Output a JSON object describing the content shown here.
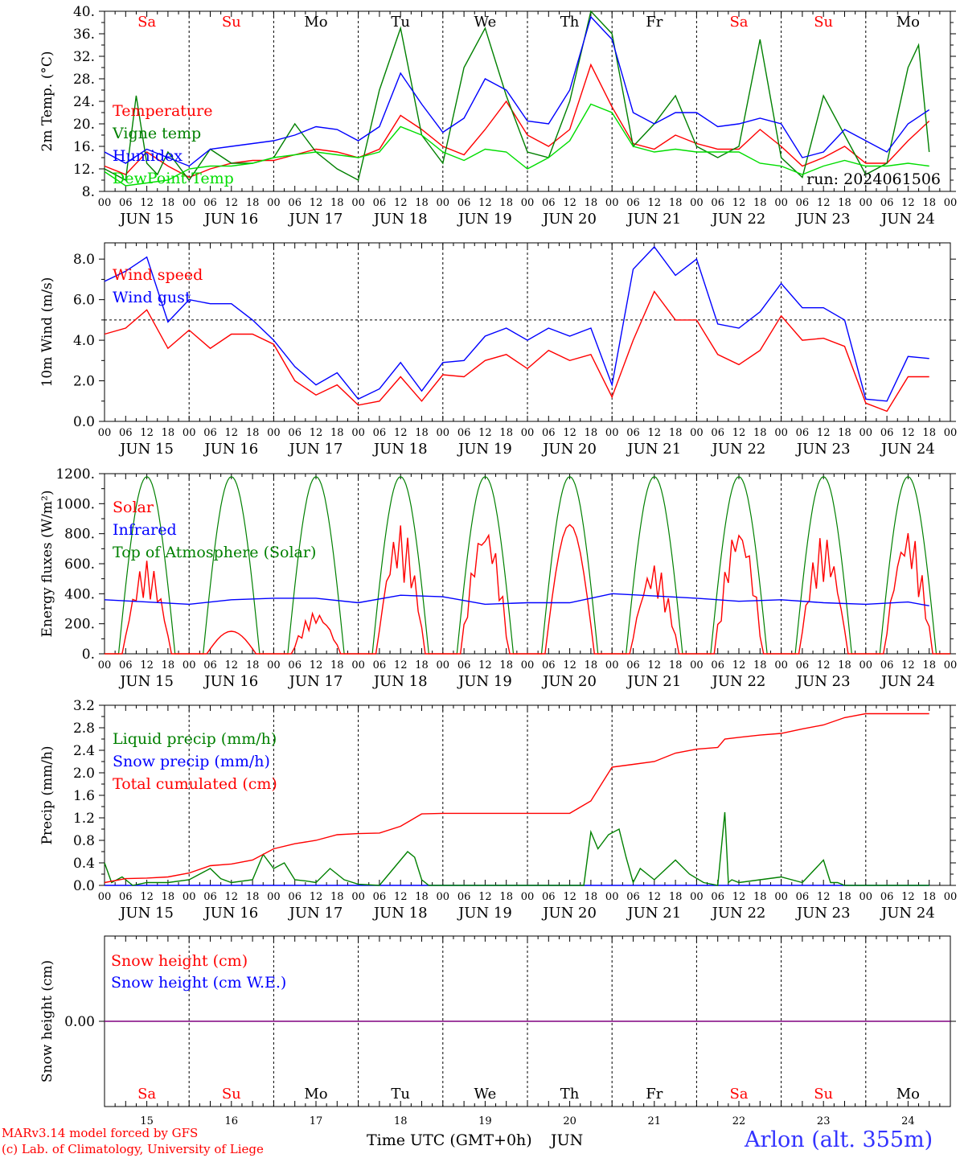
{
  "chart_data": [
    {
      "type": "line",
      "ylabel": "2m Temp. (°C)",
      "ylim": [
        8,
        40
      ],
      "yticks": [
        "8.",
        "12.",
        "16.",
        "20.",
        "24.",
        "28.",
        "32.",
        "36.",
        "40."
      ],
      "grid": "dashed vertical lines at 00 UTC",
      "legend_position": "left",
      "annotation": "run: 2024061506",
      "series": [
        {
          "name": "Temperature",
          "color": "#ff0000",
          "x": [
            0,
            6,
            12,
            18,
            24,
            30,
            36,
            42,
            48,
            54,
            60,
            66,
            72,
            78,
            84,
            90,
            96,
            102,
            108,
            114,
            120,
            126,
            132,
            138,
            144,
            150,
            156,
            162,
            168,
            174,
            180,
            186,
            192,
            198,
            204,
            210,
            216,
            222,
            228,
            234
          ],
          "y": [
            12.5,
            11,
            15,
            12.5,
            10.5,
            12,
            13,
            13.5,
            13.5,
            14.5,
            15.5,
            15,
            14,
            15.5,
            21.5,
            19,
            16,
            14.5,
            19,
            24,
            18,
            16,
            19,
            30.5,
            23,
            16.5,
            15.5,
            18,
            16.5,
            15.5,
            15.5,
            19,
            16,
            12.5,
            14,
            16,
            13,
            13,
            17,
            20.5
          ]
        },
        {
          "name": "Vigne temp",
          "color": "#008000",
          "x": [
            0,
            6,
            9,
            12,
            15,
            18,
            24,
            30,
            36,
            42,
            48,
            54,
            60,
            66,
            72,
            78,
            84,
            90,
            96,
            102,
            108,
            114,
            120,
            126,
            132,
            138,
            144,
            150,
            156,
            162,
            168,
            174,
            180,
            186,
            192,
            198,
            204,
            210,
            216,
            222,
            228,
            231,
            234
          ],
          "y": [
            12,
            10,
            25,
            13,
            11,
            15,
            10,
            15.5,
            13,
            13,
            14,
            20,
            15,
            12,
            10,
            26,
            37,
            18,
            13,
            30,
            37,
            25,
            15,
            14,
            24,
            40,
            36,
            16,
            20,
            25,
            16,
            14,
            16,
            35,
            14,
            10.5,
            25,
            18,
            11,
            13,
            30,
            34,
            15
          ]
        },
        {
          "name": "Humidex",
          "color": "#0000ff",
          "x": [
            0,
            6,
            12,
            18,
            24,
            30,
            36,
            42,
            48,
            54,
            60,
            66,
            72,
            78,
            84,
            90,
            96,
            102,
            108,
            114,
            120,
            126,
            132,
            138,
            144,
            150,
            156,
            162,
            168,
            174,
            180,
            186,
            192,
            198,
            204,
            210,
            216,
            222,
            228,
            234
          ],
          "y": [
            15,
            13,
            15.5,
            14,
            12.5,
            15.5,
            16,
            16.5,
            17,
            18,
            19.5,
            19,
            17,
            19.5,
            29,
            23.5,
            18.5,
            21,
            28,
            26,
            20.5,
            20,
            26,
            39,
            35,
            22,
            20,
            22,
            22,
            19.5,
            20,
            21,
            20,
            14,
            15,
            19,
            17,
            15,
            20,
            22.5
          ]
        },
        {
          "name": "DewPoint Temp",
          "color": "#00dd00",
          "x": [
            0,
            6,
            12,
            18,
            24,
            30,
            36,
            42,
            48,
            54,
            60,
            66,
            72,
            78,
            84,
            90,
            96,
            102,
            108,
            114,
            120,
            126,
            132,
            138,
            144,
            150,
            156,
            162,
            168,
            174,
            180,
            186,
            192,
            198,
            204,
            210,
            216,
            222,
            228,
            234
          ],
          "y": [
            11.5,
            9,
            9.5,
            10,
            12,
            12.5,
            12.5,
            13,
            14,
            14.5,
            15,
            14.5,
            14,
            15,
            19.5,
            18,
            15,
            13.5,
            15.5,
            15,
            12,
            14,
            17,
            23.5,
            22,
            16,
            15,
            15.5,
            15,
            15,
            15,
            13,
            12.5,
            11,
            12.5,
            13.5,
            12.5,
            12.5,
            13,
            12.5
          ]
        }
      ]
    },
    {
      "type": "line",
      "ylabel": "10m Wind (m/s)",
      "ylim": [
        0,
        8.8
      ],
      "yticks": [
        "0.0",
        "2.0",
        "4.0",
        "6.0",
        "8.0"
      ],
      "reference_line": 5.0,
      "series": [
        {
          "name": "Wind speed",
          "color": "#ff0000",
          "x": [
            0,
            6,
            12,
            18,
            24,
            30,
            36,
            42,
            48,
            54,
            60,
            66,
            72,
            78,
            84,
            90,
            96,
            102,
            108,
            114,
            120,
            126,
            132,
            138,
            144,
            150,
            156,
            162,
            168,
            174,
            180,
            186,
            192,
            198,
            204,
            210,
            216,
            222,
            228,
            234
          ],
          "y": [
            4.3,
            4.6,
            5.5,
            3.6,
            4.5,
            3.6,
            4.3,
            4.3,
            3.8,
            2.0,
            1.3,
            1.8,
            0.8,
            1.0,
            2.2,
            1.0,
            2.3,
            2.2,
            3.0,
            3.3,
            2.6,
            3.5,
            3.0,
            3.3,
            1.2,
            4.0,
            6.4,
            5.0,
            5.0,
            3.3,
            2.8,
            3.5,
            5.2,
            4.0,
            4.1,
            3.7,
            0.9,
            0.5,
            2.2,
            2.2
          ]
        },
        {
          "name": "Wind gust",
          "color": "#0000ff",
          "x": [
            0,
            6,
            12,
            18,
            24,
            30,
            36,
            42,
            48,
            54,
            60,
            66,
            72,
            78,
            84,
            90,
            96,
            102,
            108,
            114,
            120,
            126,
            132,
            138,
            144,
            150,
            156,
            162,
            168,
            174,
            180,
            186,
            192,
            198,
            204,
            210,
            216,
            222,
            228,
            234
          ],
          "y": [
            6.9,
            7.4,
            8.1,
            4.9,
            6.0,
            5.8,
            5.8,
            5.0,
            4.0,
            2.7,
            1.8,
            2.4,
            1.1,
            1.6,
            2.9,
            1.5,
            2.9,
            3.0,
            4.2,
            4.6,
            4.0,
            4.6,
            4.2,
            4.6,
            1.8,
            7.5,
            8.6,
            7.2,
            8.0,
            4.8,
            4.6,
            5.4,
            6.8,
            5.6,
            5.6,
            5.0,
            1.1,
            1.0,
            3.2,
            3.1
          ]
        }
      ]
    },
    {
      "type": "line",
      "ylabel": "Energy fluxes (W/m²)",
      "ylim": [
        0,
        1200
      ],
      "yticks": [
        "0.",
        "200.",
        "400.",
        "600.",
        "800.",
        "1000.",
        "1200."
      ],
      "series": [
        {
          "name": "Solar",
          "color": "#ff0000",
          "days_peak": [
            620,
            150,
            280,
            860,
            880,
            860,
            600,
            880,
            790,
            840
          ]
        },
        {
          "name": "Infrared",
          "color": "#0000ff",
          "x": [
            0,
            12,
            24,
            36,
            48,
            60,
            72,
            84,
            96,
            108,
            120,
            132,
            144,
            156,
            168,
            180,
            192,
            204,
            216,
            228,
            234
          ],
          "y": [
            360,
            345,
            330,
            360,
            370,
            370,
            340,
            390,
            380,
            330,
            340,
            340,
            400,
            385,
            370,
            350,
            360,
            340,
            330,
            345,
            320
          ]
        },
        {
          "name": "Top of Atmosphere (Solar)",
          "color": "#008000",
          "peak": 1180
        }
      ]
    },
    {
      "type": "line",
      "ylabel": "Precip (mm/h)",
      "ylim": [
        0,
        3.2
      ],
      "yticks": [
        "0.0",
        "0.4",
        "0.8",
        "1.2",
        "1.6",
        "2.0",
        "2.4",
        "2.8",
        "3.2"
      ],
      "series": [
        {
          "name": "Liquid precip (mm/h)",
          "color": "#008000",
          "x": [
            0,
            2,
            5,
            8,
            12,
            18,
            24,
            30,
            33,
            36,
            42,
            45,
            48,
            51,
            54,
            57,
            60,
            64,
            68,
            72,
            78,
            84,
            86,
            88,
            90,
            92,
            96,
            108,
            120,
            132,
            136,
            138,
            140,
            143,
            146,
            148,
            150,
            152,
            156,
            162,
            166,
            170,
            174,
            176,
            177,
            178,
            180,
            186,
            192,
            198,
            204,
            206,
            208,
            210,
            216,
            222,
            228,
            234
          ],
          "y": [
            0.4,
            0.05,
            0.15,
            0.0,
            0.05,
            0.05,
            0.1,
            0.3,
            0.12,
            0.05,
            0.1,
            0.55,
            0.3,
            0.4,
            0.1,
            0.08,
            0.05,
            0.3,
            0.1,
            0.02,
            0.0,
            0.45,
            0.6,
            0.5,
            0.1,
            0.0,
            0.0,
            0.0,
            0.0,
            0.0,
            0.0,
            0.95,
            0.65,
            0.9,
            1.0,
            0.5,
            0.05,
            0.3,
            0.1,
            0.45,
            0.2,
            0.05,
            0.0,
            1.3,
            0.05,
            0.1,
            0.05,
            0.1,
            0.15,
            0.05,
            0.45,
            0.05,
            0.05,
            0.0,
            0.0,
            0.0,
            0.0,
            0.0
          ]
        },
        {
          "name": "Snow precip (mm/h)",
          "color": "#0000ff",
          "x": [
            0,
            234
          ],
          "y": [
            0,
            0
          ]
        },
        {
          "name": "Total cumulated (cm)",
          "color": "#ff0000",
          "x": [
            0,
            6,
            12,
            18,
            24,
            30,
            36,
            42,
            48,
            54,
            60,
            66,
            72,
            78,
            84,
            90,
            96,
            102,
            108,
            114,
            120,
            126,
            132,
            138,
            144,
            150,
            156,
            162,
            168,
            174,
            176,
            180,
            186,
            192,
            198,
            204,
            210,
            216,
            222,
            228,
            234
          ],
          "y": [
            0.05,
            0.12,
            0.13,
            0.15,
            0.22,
            0.35,
            0.38,
            0.45,
            0.65,
            0.74,
            0.8,
            0.9,
            0.92,
            0.93,
            1.05,
            1.27,
            1.28,
            1.28,
            1.28,
            1.28,
            1.28,
            1.28,
            1.28,
            1.5,
            2.1,
            2.15,
            2.2,
            2.35,
            2.42,
            2.45,
            2.6,
            2.63,
            2.67,
            2.7,
            2.78,
            2.85,
            2.98,
            3.05,
            3.05,
            3.05,
            3.05
          ]
        }
      ]
    },
    {
      "type": "line",
      "ylabel": "Snow height (cm)",
      "yticks": [
        "0.00"
      ],
      "series": [
        {
          "name": "Snow height (cm)",
          "color": "#ff0000",
          "x": [
            0,
            234
          ],
          "y": [
            0,
            0
          ]
        },
        {
          "name": "Snow height (cm W.E.)",
          "color": "#0000ff",
          "x": [
            0,
            234
          ],
          "y": [
            0,
            0
          ]
        }
      ]
    }
  ],
  "x_axis": {
    "hour_ticks": [
      "00",
      "06",
      "12",
      "18"
    ],
    "end_tick": "00",
    "dates": [
      "JUN 15",
      "JUN 16",
      "JUN 17",
      "JUN 18",
      "JUN 19",
      "JUN 20",
      "JUN 21",
      "JUN 22",
      "JUN 23",
      "JUN 24"
    ],
    "day_numbers": [
      "15",
      "16",
      "17",
      "18",
      "19",
      "20",
      "21",
      "22",
      "23",
      "24"
    ],
    "weekdays": [
      "Sa",
      "Su",
      "Mo",
      "Tu",
      "We",
      "Th",
      "Fr",
      "Sa",
      "Su",
      "Mo"
    ],
    "weekday_colors": [
      "#ff0000",
      "#ff0000",
      "#000000",
      "#000000",
      "#000000",
      "#000000",
      "#000000",
      "#ff0000",
      "#ff0000",
      "#000000"
    ],
    "title": "Time UTC (GMT+0h)",
    "month": "JUN"
  },
  "footer": {
    "model": "MARv3.14 model forced by GFS",
    "copyright": "(c) Lab. of Climatology, University of Liege",
    "station": "Arlon (alt. 355m)"
  }
}
